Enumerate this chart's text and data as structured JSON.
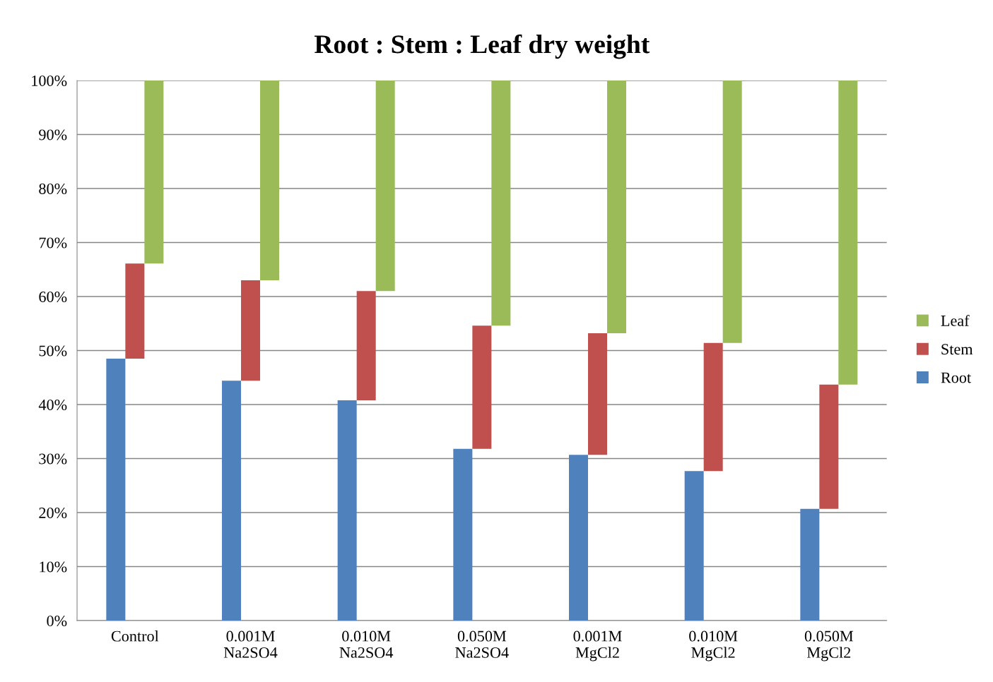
{
  "chart_data": {
    "type": "bar",
    "title": "Root : Stem : Leaf dry weight",
    "categories": [
      "Control",
      "0.001M\nNa2SO4",
      "0.010M\nNa2SO4",
      "0.050M\nNa2SO4",
      "0.001M\nMgCl2",
      "0.010M\nMgCl2",
      "0.050M\nMgCl2"
    ],
    "series": [
      {
        "name": "Root",
        "color": "#4f81bd",
        "values": [
          48.5,
          44.4,
          40.8,
          31.8,
          30.7,
          27.7,
          20.7
        ]
      },
      {
        "name": "Stem",
        "color": "#c0504d",
        "values": [
          17.6,
          18.6,
          20.2,
          22.8,
          22.5,
          23.7,
          23.0
        ],
        "base": [
          48.5,
          44.4,
          40.8,
          31.8,
          30.7,
          27.7,
          20.7
        ]
      },
      {
        "name": "Leaf",
        "color": "#9bbb59",
        "values": [
          33.9,
          37.0,
          39.0,
          45.4,
          46.8,
          48.6,
          56.3
        ],
        "base": [
          66.1,
          63.0,
          61.0,
          54.6,
          53.2,
          51.4,
          43.7
        ]
      }
    ],
    "ylim": [
      0,
      100
    ],
    "yticks": [
      {
        "value": 0,
        "label": "0%"
      },
      {
        "value": 10,
        "label": "10%"
      },
      {
        "value": 20,
        "label": "20%"
      },
      {
        "value": 30,
        "label": "30%"
      },
      {
        "value": 40,
        "label": "40%"
      },
      {
        "value": 50,
        "label": "50%"
      },
      {
        "value": 60,
        "label": "60%"
      },
      {
        "value": 70,
        "label": "70%"
      },
      {
        "value": 80,
        "label": "80%"
      },
      {
        "value": 90,
        "label": "90%"
      },
      {
        "value": 100,
        "label": "100%"
      }
    ],
    "grid": "y",
    "legend": "right"
  }
}
